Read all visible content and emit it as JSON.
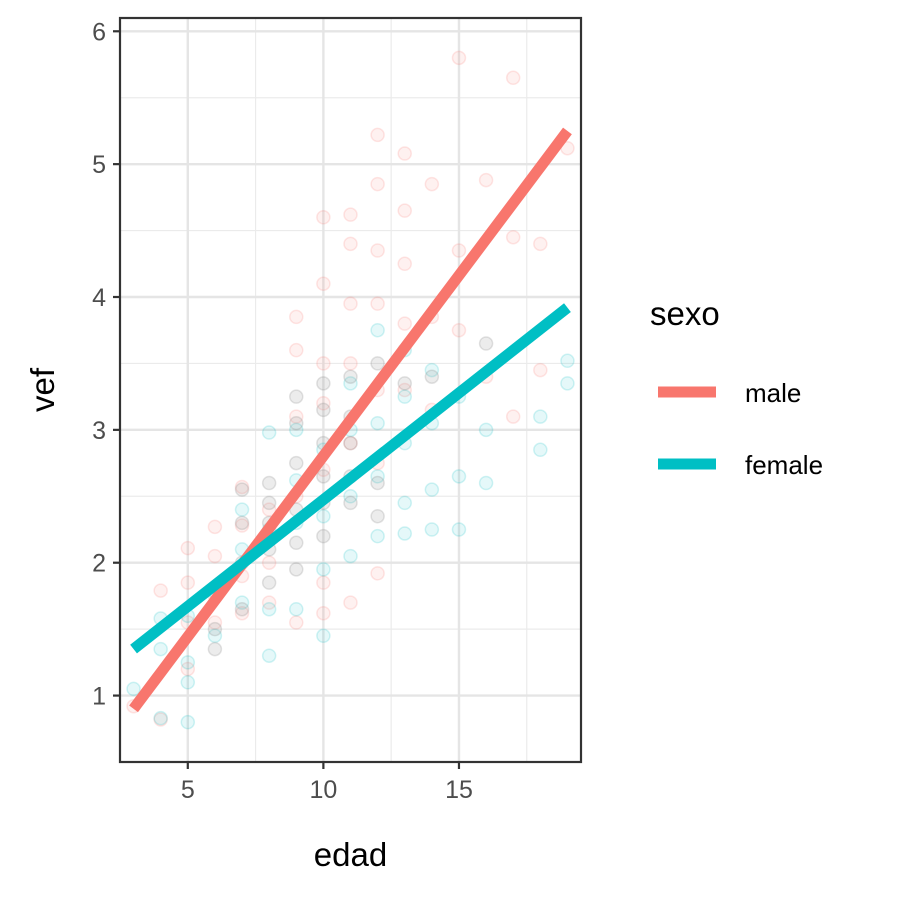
{
  "chart_data": {
    "type": "scatter",
    "xlabel": "edad",
    "ylabel": "vef",
    "xlim": [
      2.5,
      19.5
    ],
    "ylim": [
      0.5,
      6.1
    ],
    "x_ticks": [
      5,
      10,
      15
    ],
    "y_ticks": [
      1,
      2,
      3,
      4,
      5,
      6
    ],
    "grid": true,
    "legend": {
      "title": "sexo",
      "position": "right",
      "entries": [
        {
          "label": "male",
          "color": "#f8766d"
        },
        {
          "label": "female",
          "color": "#00bfc4"
        }
      ]
    },
    "series": [
      {
        "name": "male",
        "color": "#f8766d",
        "fit_line": {
          "x": [
            3,
            19
          ],
          "y": [
            0.9,
            5.25
          ]
        },
        "points": [
          [
            3,
            0.92
          ],
          [
            4,
            0.82
          ],
          [
            4,
            1.79
          ],
          [
            5,
            1.2
          ],
          [
            5,
            1.55
          ],
          [
            5,
            1.85
          ],
          [
            5,
            2.11
          ],
          [
            6,
            1.55
          ],
          [
            6,
            1.75
          ],
          [
            6,
            2.05
          ],
          [
            6,
            2.27
          ],
          [
            7,
            1.62
          ],
          [
            7,
            1.9
          ],
          [
            7,
            2.28
          ],
          [
            7,
            2.57
          ],
          [
            8,
            1.7
          ],
          [
            8,
            2.0
          ],
          [
            8,
            2.4
          ],
          [
            9,
            1.55
          ],
          [
            9,
            2.5
          ],
          [
            9,
            3.1
          ],
          [
            9,
            3.6
          ],
          [
            9,
            3.85
          ],
          [
            10,
            1.62
          ],
          [
            10,
            1.85
          ],
          [
            10,
            2.7
          ],
          [
            10,
            3.2
          ],
          [
            10,
            3.5
          ],
          [
            10,
            4.6
          ],
          [
            10,
            4.1
          ],
          [
            11,
            1.7
          ],
          [
            11,
            2.9
          ],
          [
            11,
            3.5
          ],
          [
            11,
            3.95
          ],
          [
            11,
            4.4
          ],
          [
            11,
            4.62
          ],
          [
            12,
            1.92
          ],
          [
            12,
            2.75
          ],
          [
            12,
            3.3
          ],
          [
            12,
            3.95
          ],
          [
            12,
            4.35
          ],
          [
            12,
            4.85
          ],
          [
            12,
            5.22
          ],
          [
            13,
            3.3
          ],
          [
            13,
            3.8
          ],
          [
            13,
            4.25
          ],
          [
            13,
            4.65
          ],
          [
            13,
            5.08
          ],
          [
            14,
            3.15
          ],
          [
            14,
            3.85
          ],
          [
            14,
            4.85
          ],
          [
            15,
            3.75
          ],
          [
            15,
            4.35
          ],
          [
            15,
            5.8
          ],
          [
            16,
            4.88
          ],
          [
            16,
            3.4
          ],
          [
            17,
            5.65
          ],
          [
            17,
            4.45
          ],
          [
            17,
            3.1
          ],
          [
            18,
            4.4
          ],
          [
            18,
            3.45
          ],
          [
            19,
            5.12
          ]
        ]
      },
      {
        "name": "female",
        "color": "#00bfc4",
        "fit_line": {
          "x": [
            3,
            19
          ],
          "y": [
            1.35,
            3.92
          ]
        },
        "points": [
          [
            3,
            1.05
          ],
          [
            4,
            0.83
          ],
          [
            4,
            1.35
          ],
          [
            4,
            1.58
          ],
          [
            5,
            0.8
          ],
          [
            5,
            1.1
          ],
          [
            5,
            1.25
          ],
          [
            5,
            1.6
          ],
          [
            6,
            1.45
          ],
          [
            6,
            1.78
          ],
          [
            7,
            1.7
          ],
          [
            7,
            2.1
          ],
          [
            7,
            2.4
          ],
          [
            8,
            1.3
          ],
          [
            8,
            1.65
          ],
          [
            8,
            2.25
          ],
          [
            8,
            2.98
          ],
          [
            9,
            1.65
          ],
          [
            9,
            2.3
          ],
          [
            9,
            2.62
          ],
          [
            9,
            3.0
          ],
          [
            10,
            1.45
          ],
          [
            10,
            1.95
          ],
          [
            10,
            2.35
          ],
          [
            10,
            2.85
          ],
          [
            11,
            2.05
          ],
          [
            11,
            2.5
          ],
          [
            11,
            3.0
          ],
          [
            11,
            3.35
          ],
          [
            12,
            2.2
          ],
          [
            12,
            2.65
          ],
          [
            12,
            3.05
          ],
          [
            12,
            3.75
          ],
          [
            13,
            2.22
          ],
          [
            13,
            2.45
          ],
          [
            13,
            2.9
          ],
          [
            13,
            3.25
          ],
          [
            13,
            3.6
          ],
          [
            14,
            2.25
          ],
          [
            14,
            2.55
          ],
          [
            14,
            3.05
          ],
          [
            14,
            3.45
          ],
          [
            15,
            2.25
          ],
          [
            15,
            2.65
          ],
          [
            15,
            3.25
          ],
          [
            16,
            2.6
          ],
          [
            16,
            3.0
          ],
          [
            18,
            2.85
          ],
          [
            18,
            3.1
          ],
          [
            19,
            3.35
          ],
          [
            19,
            3.52
          ]
        ]
      },
      {
        "name": "",
        "color": "#888888",
        "points": [
          [
            6,
            1.35
          ],
          [
            6,
            1.5
          ],
          [
            7,
            1.65
          ],
          [
            7,
            2.0
          ],
          [
            7,
            2.3
          ],
          [
            7,
            2.55
          ],
          [
            8,
            1.85
          ],
          [
            8,
            2.1
          ],
          [
            8,
            2.3
          ],
          [
            8,
            2.45
          ],
          [
            8,
            2.6
          ],
          [
            9,
            1.95
          ],
          [
            9,
            2.15
          ],
          [
            9,
            2.4
          ],
          [
            9,
            2.75
          ],
          [
            9,
            3.05
          ],
          [
            9,
            3.25
          ],
          [
            10,
            2.2
          ],
          [
            10,
            2.45
          ],
          [
            10,
            2.65
          ],
          [
            10,
            2.9
          ],
          [
            10,
            3.15
          ],
          [
            10,
            3.35
          ],
          [
            11,
            2.45
          ],
          [
            11,
            2.65
          ],
          [
            11,
            2.9
          ],
          [
            11,
            3.1
          ],
          [
            11,
            3.4
          ],
          [
            12,
            2.35
          ],
          [
            12,
            2.6
          ],
          [
            12,
            3.5
          ],
          [
            13,
            3.35
          ],
          [
            14,
            3.4
          ],
          [
            16,
            3.65
          ]
        ]
      }
    ]
  }
}
